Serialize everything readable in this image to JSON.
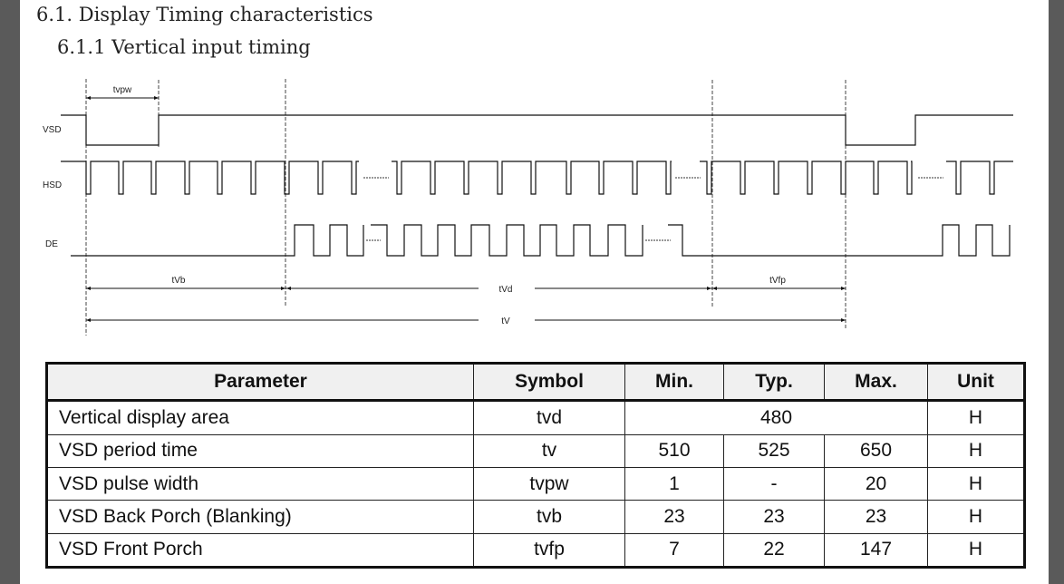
{
  "section_title": "6.1. Display Timing characteristics",
  "subsection_title": "6.1.1 Vertical input timing",
  "diagram": {
    "signals": [
      "VSD",
      "HSD",
      "DE"
    ],
    "timing_labels": {
      "tvpw": "tvpw",
      "tvb": "tVb",
      "tvd": "tVd",
      "tvfp": "tVfp",
      "tv": "tV"
    }
  },
  "table": {
    "headers": [
      "Parameter",
      "Symbol",
      "Min.",
      "Typ.",
      "Max.",
      "Unit"
    ],
    "rows": [
      {
        "parameter": "Vertical display area",
        "symbol": "tvd",
        "typ_merged": "480",
        "unit": "H"
      },
      {
        "parameter": "VSD period time",
        "symbol": "tv",
        "min": "510",
        "typ": "525",
        "max": "650",
        "unit": "H"
      },
      {
        "parameter": "VSD pulse width",
        "symbol": "tvpw",
        "min": "1",
        "typ": "-",
        "max": "20",
        "unit": "H"
      },
      {
        "parameter": "VSD Back Porch (Blanking)",
        "symbol": "tvb",
        "min": "23",
        "typ": "23",
        "max": "23",
        "unit": "H"
      },
      {
        "parameter": "VSD Front Porch",
        "symbol": "tvfp",
        "min": "7",
        "typ": "22",
        "max": "147",
        "unit": "H"
      }
    ]
  }
}
